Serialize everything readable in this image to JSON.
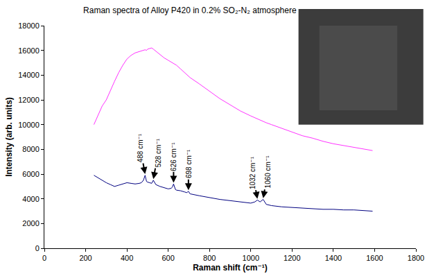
{
  "chart_data": {
    "type": "line",
    "title": "Raman spectra of Alloy P420 in 0.2% SO₂-N₂ atmosphere",
    "x_label": "Raman shift (cm⁻¹)",
    "y_label": "Intensity (arb. units)",
    "x": [
      240,
      260,
      280,
      300,
      320,
      340,
      360,
      380,
      400,
      420,
      440,
      460,
      470,
      480,
      488,
      495,
      500,
      510,
      520,
      528,
      536,
      540,
      560,
      580,
      600,
      615,
      620,
      626,
      635,
      640,
      660,
      680,
      690,
      698,
      700,
      706,
      750,
      800,
      850,
      900,
      950,
      1000,
      1020,
      1032,
      1045,
      1050,
      1060,
      1075,
      1100,
      1150,
      1200,
      1250,
      1300,
      1350,
      1400,
      1450,
      1500,
      1550,
      1590
    ],
    "series": [
      {
        "color": "#ff33ff",
        "values": [
          10000,
          10800,
          11500,
          12000,
          12800,
          13500,
          14200,
          14800,
          15300,
          15600,
          15800,
          15900,
          15950,
          16000,
          16050,
          16000,
          16100,
          16150,
          16200,
          16100,
          16000,
          15900,
          15700,
          15400,
          15200,
          15050,
          15000,
          14950,
          14850,
          14800,
          14500,
          14200,
          14050,
          13950,
          13900,
          13800,
          13300,
          12700,
          12100,
          11600,
          11100,
          10700,
          10550,
          10450,
          10350,
          10300,
          10250,
          10150,
          10000,
          9700,
          9400,
          9100,
          8900,
          8650,
          8450,
          8300,
          8150,
          8000,
          7900
        ]
      },
      {
        "color": "#000080",
        "values": [
          5900,
          5700,
          5500,
          5300,
          5150,
          5000,
          5100,
          5200,
          5300,
          5250,
          5200,
          5250,
          5300,
          5500,
          5900,
          5400,
          5350,
          5300,
          5250,
          5500,
          5200,
          5150,
          5000,
          4900,
          4800,
          4850,
          4950,
          5200,
          4750,
          4700,
          4650,
          4550,
          4500,
          4600,
          4550,
          4400,
          4250,
          4100,
          3950,
          3850,
          3750,
          3650,
          3750,
          3900,
          3750,
          3800,
          3950,
          3550,
          3450,
          3350,
          3300,
          3250,
          3200,
          3150,
          3150,
          3100,
          3100,
          3050,
          3000
        ]
      }
    ],
    "annotations": [
      {
        "text": "488 cm⁻¹",
        "x": 488,
        "y": 6000
      },
      {
        "text": "528 cm⁻¹",
        "x": 528,
        "y": 5600
      },
      {
        "text": "626 cm⁻¹",
        "x": 626,
        "y": 5300
      },
      {
        "text": "698 cm⁻¹",
        "x": 698,
        "y": 4700
      },
      {
        "text": "1032 cm⁻¹",
        "x": 1032,
        "y": 4000
      },
      {
        "text": "1060 cm⁻¹",
        "x": 1060,
        "y": 4050
      }
    ],
    "xlim": [
      0,
      1800
    ],
    "xticks": [
      0,
      200,
      400,
      600,
      800,
      1000,
      1200,
      1400,
      1600,
      1800
    ],
    "ylim": [
      0,
      18000
    ],
    "yticks": [
      0,
      2000,
      4000,
      6000,
      8000,
      10000,
      12000,
      14000,
      16000,
      18000
    ],
    "grid": false
  }
}
